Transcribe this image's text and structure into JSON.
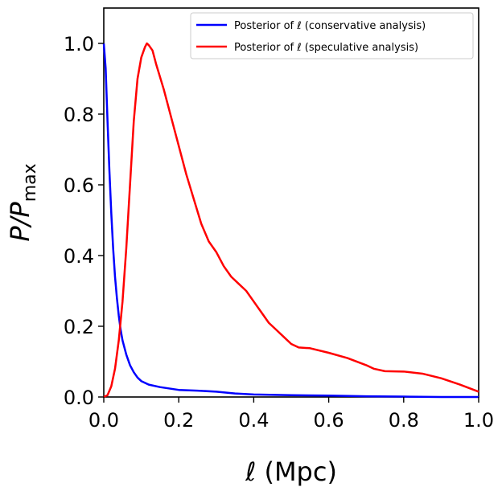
{
  "chart_data": {
    "type": "line",
    "xlabel": "ℓ (Mpc)",
    "ylabel_main": "P/P",
    "ylabel_sub": "max",
    "xlim": [
      0.0,
      1.0
    ],
    "ylim": [
      0.0,
      1.1
    ],
    "xticks": [
      "0.0",
      "0.2",
      "0.4",
      "0.6",
      "0.8",
      "1.0"
    ],
    "yticks": [
      "0.0",
      "0.2",
      "0.4",
      "0.6",
      "0.8",
      "1.0"
    ],
    "legend_position": "top-right",
    "grid": false,
    "series": [
      {
        "name": "Posterior of ℓ (conservative analysis)",
        "color": "#0000ff",
        "points": [
          [
            0.0,
            1.0
          ],
          [
            0.005,
            0.93
          ],
          [
            0.01,
            0.78
          ],
          [
            0.015,
            0.64
          ],
          [
            0.02,
            0.52
          ],
          [
            0.025,
            0.42
          ],
          [
            0.03,
            0.34
          ],
          [
            0.035,
            0.28
          ],
          [
            0.04,
            0.23
          ],
          [
            0.045,
            0.19
          ],
          [
            0.05,
            0.16
          ],
          [
            0.06,
            0.12
          ],
          [
            0.07,
            0.09
          ],
          [
            0.08,
            0.07
          ],
          [
            0.09,
            0.055
          ],
          [
            0.1,
            0.045
          ],
          [
            0.12,
            0.035
          ],
          [
            0.15,
            0.028
          ],
          [
            0.2,
            0.02
          ],
          [
            0.25,
            0.018
          ],
          [
            0.3,
            0.015
          ],
          [
            0.35,
            0.01
          ],
          [
            0.4,
            0.007
          ],
          [
            0.5,
            0.005
          ],
          [
            0.6,
            0.004
          ],
          [
            0.7,
            0.002
          ],
          [
            0.8,
            0.001
          ],
          [
            0.9,
            0.0
          ],
          [
            1.0,
            0.0
          ]
        ]
      },
      {
        "name": "Posterior of ℓ (speculative analysis)",
        "color": "#ff0000",
        "points": [
          [
            0.0,
            0.0
          ],
          [
            0.01,
            0.005
          ],
          [
            0.02,
            0.03
          ],
          [
            0.03,
            0.08
          ],
          [
            0.04,
            0.16
          ],
          [
            0.05,
            0.27
          ],
          [
            0.06,
            0.42
          ],
          [
            0.07,
            0.6
          ],
          [
            0.08,
            0.78
          ],
          [
            0.09,
            0.9
          ],
          [
            0.1,
            0.96
          ],
          [
            0.11,
            0.99
          ],
          [
            0.115,
            1.0
          ],
          [
            0.12,
            0.995
          ],
          [
            0.13,
            0.98
          ],
          [
            0.14,
            0.94
          ],
          [
            0.16,
            0.87
          ],
          [
            0.18,
            0.79
          ],
          [
            0.2,
            0.71
          ],
          [
            0.22,
            0.63
          ],
          [
            0.24,
            0.56
          ],
          [
            0.26,
            0.49
          ],
          [
            0.28,
            0.44
          ],
          [
            0.3,
            0.41
          ],
          [
            0.32,
            0.37
          ],
          [
            0.34,
            0.34
          ],
          [
            0.36,
            0.32
          ],
          [
            0.38,
            0.3
          ],
          [
            0.4,
            0.27
          ],
          [
            0.42,
            0.24
          ],
          [
            0.44,
            0.21
          ],
          [
            0.46,
            0.19
          ],
          [
            0.48,
            0.17
          ],
          [
            0.5,
            0.15
          ],
          [
            0.52,
            0.14
          ],
          [
            0.55,
            0.138
          ],
          [
            0.6,
            0.125
          ],
          [
            0.65,
            0.11
          ],
          [
            0.7,
            0.09
          ],
          [
            0.72,
            0.08
          ],
          [
            0.75,
            0.073
          ],
          [
            0.8,
            0.072
          ],
          [
            0.85,
            0.066
          ],
          [
            0.9,
            0.053
          ],
          [
            0.95,
            0.035
          ],
          [
            1.0,
            0.015
          ]
        ]
      }
    ]
  }
}
